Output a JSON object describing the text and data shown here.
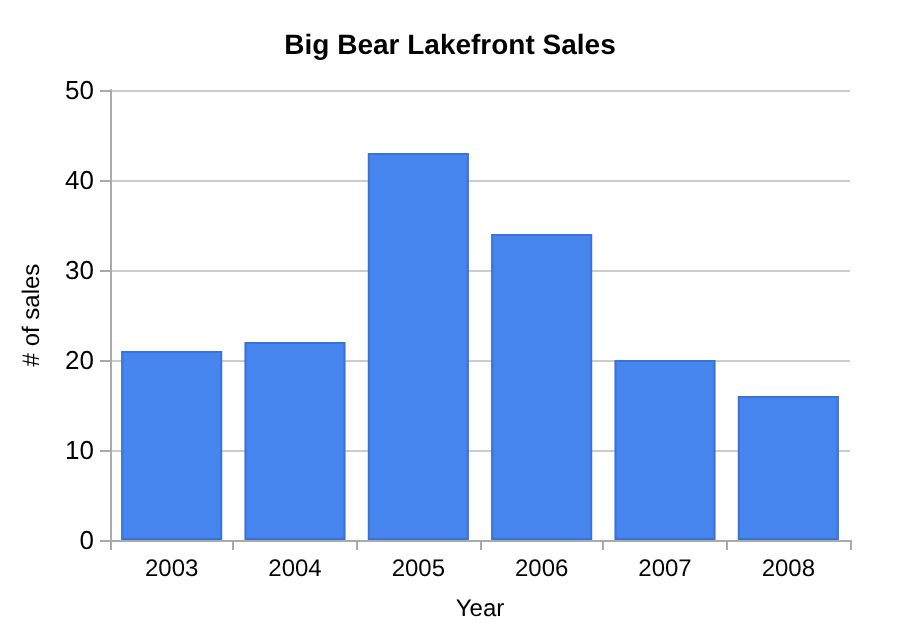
{
  "chart_data": {
    "type": "bar",
    "title": "Big Bear Lakefront Sales",
    "xlabel": "Year",
    "ylabel": "# of sales",
    "categories": [
      "2003",
      "2004",
      "2005",
      "2006",
      "2007",
      "2008"
    ],
    "values": [
      21,
      22,
      43,
      34,
      20,
      16
    ],
    "color": "#4684ee",
    "ylim": [
      0,
      50
    ],
    "yticks": [
      0,
      10,
      20,
      30,
      40,
      50
    ],
    "grid": "y"
  }
}
